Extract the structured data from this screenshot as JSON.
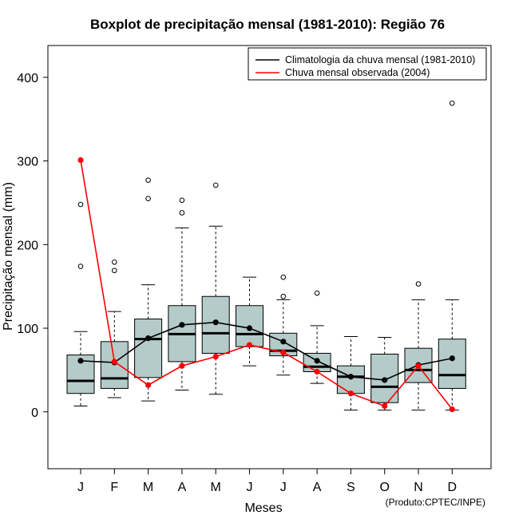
{
  "chart_data": {
    "type": "boxplot",
    "title": "Boxplot de precipitação mensal (1981-2010): Região 76",
    "xlabel": "Meses",
    "ylabel": "Precipitação mensal (mm)",
    "ylim": [
      -68,
      438
    ],
    "yticks": [
      0,
      100,
      200,
      300,
      400
    ],
    "categories": [
      "J",
      "F",
      "M",
      "A",
      "M",
      "J",
      "J",
      "A",
      "S",
      "O",
      "N",
      "D"
    ],
    "boxes": [
      {
        "whisker_low": 7,
        "q1": 22,
        "median": 37,
        "q3": 68,
        "whisker_high": 96,
        "outliers": [
          174,
          248
        ]
      },
      {
        "whisker_low": 17,
        "q1": 28,
        "median": 40,
        "q3": 84,
        "whisker_high": 120,
        "outliers": [
          169,
          179
        ]
      },
      {
        "whisker_low": 13,
        "q1": 41,
        "median": 87,
        "q3": 111,
        "whisker_high": 152,
        "outliers": [
          255,
          277
        ]
      },
      {
        "whisker_low": 26,
        "q1": 60,
        "median": 93,
        "q3": 127,
        "whisker_high": 220,
        "outliers": [
          238,
          253
        ]
      },
      {
        "whisker_low": 21,
        "q1": 70,
        "median": 94,
        "q3": 138,
        "whisker_high": 222,
        "outliers": [
          271
        ]
      },
      {
        "whisker_low": 55,
        "q1": 78,
        "median": 93,
        "q3": 127,
        "whisker_high": 161,
        "outliers": []
      },
      {
        "whisker_low": 44,
        "q1": 67,
        "median": 73,
        "q3": 94,
        "whisker_high": 134,
        "outliers": [
          138,
          161
        ]
      },
      {
        "whisker_low": 34,
        "q1": 48,
        "median": 54,
        "q3": 70,
        "whisker_high": 103,
        "outliers": [
          142
        ]
      },
      {
        "whisker_low": 2,
        "q1": 22,
        "median": 42,
        "q3": 55,
        "whisker_high": 90,
        "outliers": []
      },
      {
        "whisker_low": 2,
        "q1": 11,
        "median": 30,
        "q3": 69,
        "whisker_high": 89,
        "outliers": []
      },
      {
        "whisker_low": 2,
        "q1": 35,
        "median": 50,
        "q3": 76,
        "whisker_high": 134,
        "outliers": [
          153
        ]
      },
      {
        "whisker_low": 2,
        "q1": 28,
        "median": 44,
        "q3": 87,
        "whisker_high": 134,
        "outliers": [
          369
        ]
      }
    ],
    "series": [
      {
        "name": "Climatologia da chuva mensal (1981-2010)",
        "color": "#000000",
        "values": [
          61,
          59,
          88,
          104,
          107,
          100,
          84,
          61,
          42,
          38,
          56,
          64
        ]
      },
      {
        "name": "Chuva mensal observada (2004)",
        "color": "#ff0000",
        "values": [
          301,
          60,
          32,
          55,
          66,
          80,
          71,
          48,
          22,
          7,
          55,
          3
        ]
      }
    ],
    "box_fill": "#b4cbca",
    "legend_position": "top-right",
    "credit": "(Produto:CPTEC/INPE)"
  }
}
